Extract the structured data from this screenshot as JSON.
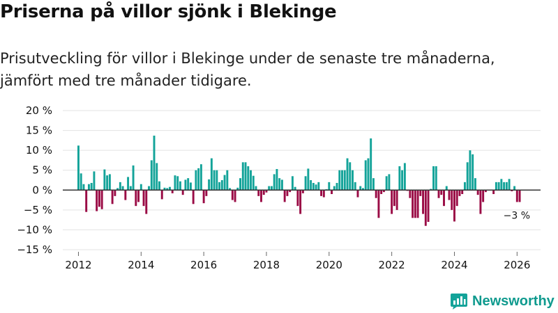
{
  "title": "Priserna på villor sjönk i Blekinge",
  "subtitle": "Prisutveckling för villor i Blekinge under de senaste tre månaderna, jämfört med tre månader tidigare.",
  "brand": {
    "name": "Newsworthy"
  },
  "colors": {
    "positive": "#13a399",
    "negative": "#9a0b45",
    "grid": "#e3e3e3",
    "zero": "#333333",
    "text": "#111111"
  },
  "chart_data": {
    "type": "bar",
    "title": "Priserna på villor sjönk i Blekinge",
    "xlabel": "",
    "ylabel": "",
    "ylim": [
      -15,
      20
    ],
    "xlim": [
      2011.5,
      2026.75
    ],
    "y_ticks": [
      20,
      15,
      10,
      5,
      0,
      -5,
      -10,
      -15
    ],
    "y_tick_labels": [
      "20 %",
      "15 %",
      "10 %",
      "5 %",
      "0 %",
      "−5 %",
      "−10 %",
      "−15 %"
    ],
    "x_ticks": [
      2012,
      2014,
      2016,
      2018,
      2020,
      2022,
      2024,
      2026
    ],
    "x_tick_labels": [
      "2012",
      "2014",
      "2016",
      "2018",
      "2020",
      "2022",
      "2024",
      "2026"
    ],
    "start_year": 2012,
    "start_month": 1,
    "values": [
      11.2,
      4.2,
      1.5,
      -5.5,
      1.5,
      1.8,
      4.7,
      -5.3,
      -4.2,
      -4.8,
      5.2,
      3.7,
      4.0,
      -3.5,
      -1.5,
      0.5,
      2.0,
      1.0,
      -2.5,
      3.3,
      1.0,
      6.2,
      -4.0,
      -3.0,
      1.5,
      -4.0,
      -6.0,
      1.0,
      7.5,
      13.7,
      6.8,
      2.2,
      -2.3,
      0.6,
      0.5,
      0.8,
      -0.8,
      3.7,
      3.5,
      2.2,
      -1.2,
      2.6,
      3.0,
      1.9,
      -3.5,
      5.0,
      5.5,
      6.5,
      -3.3,
      -1.5,
      2.7,
      8.0,
      5.0,
      5.0,
      2.0,
      2.5,
      3.8,
      5.0,
      0.5,
      -2.5,
      -3.0,
      0.6,
      3.0,
      7.0,
      7.0,
      6.0,
      5.0,
      3.6,
      1.0,
      -1.5,
      -3.0,
      -1.2,
      -0.6,
      1.0,
      1.0,
      4.0,
      5.3,
      3.0,
      2.6,
      -3.0,
      -1.5,
      -0.5,
      3.5,
      0.8,
      -4.0,
      -6.0,
      -0.8,
      3.5,
      5.4,
      2.5,
      1.8,
      1.4,
      2.0,
      -1.5,
      -1.8,
      0.2,
      2.0,
      -1.0,
      1.0,
      1.8,
      5.0,
      5.0,
      5.0,
      8.0,
      7.0,
      5.0,
      2.0,
      -1.8,
      1.0,
      0.5,
      7.5,
      8.0,
      13.0,
      3.0,
      -2.0,
      -7.0,
      -1.0,
      -0.5,
      3.5,
      4.0,
      -6.0,
      -4.0,
      -5.0,
      6.0,
      5.0,
      6.8,
      -0.2,
      -2.0,
      -7.0,
      -7.0,
      -7.0,
      -1.5,
      -6.0,
      -9.0,
      -8.0,
      0.3,
      6.0,
      6.0,
      -2.0,
      -1.2,
      -4.0,
      1.0,
      -2.5,
      -5.0,
      -7.9,
      -4.0,
      -1.5,
      -1.0,
      2.0,
      7.0,
      10.0,
      9.0,
      3.0,
      -1.2,
      -6.0,
      -3.0,
      -0.5,
      -0.1,
      0.1,
      -1.0,
      2.0,
      2.0,
      2.8,
      2.0,
      2.0,
      2.8,
      -0.3,
      1.0,
      -3.0,
      -3.0
    ],
    "annotations": [
      {
        "text": "−3 %",
        "x": 2025.99,
        "y": -3
      }
    ]
  }
}
